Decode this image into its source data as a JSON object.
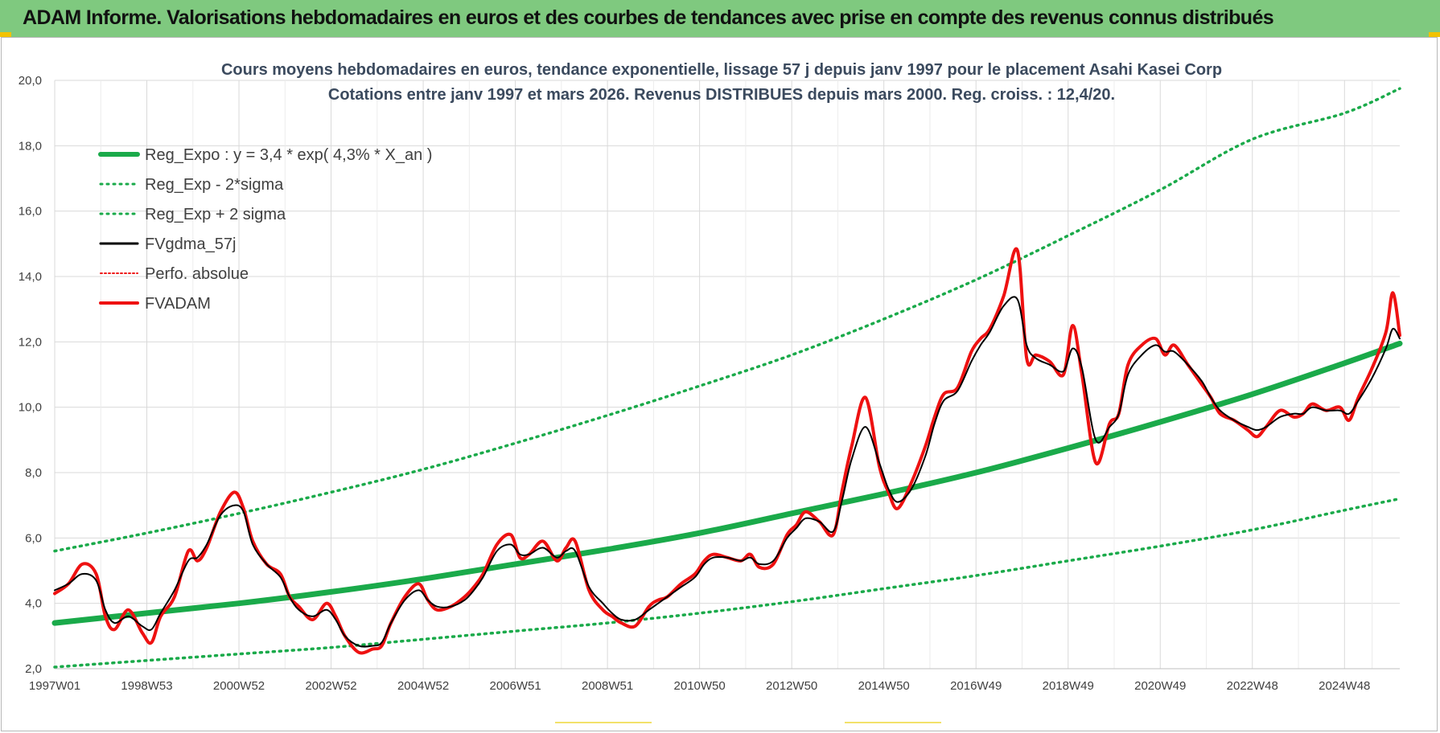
{
  "header": {
    "banner_title": "ADAM Informe. Valorisations hebdomadaires en euros et des courbes de tendances avec prise en compte des revenus connus distribués"
  },
  "colors": {
    "banner": "#7fc97f",
    "reg_expo": "#1aaa4a",
    "sigma": "#1aaa4a",
    "fvgdma": "#000000",
    "fvadam": "#ee1111",
    "perfo": "#ee1111",
    "grid": "#d9d9d9",
    "title_text": "#3b4a5e"
  },
  "chart_data": {
    "type": "line",
    "title": "Cours moyens hebdomadaires en euros, tendance exponentielle, lissage 57 j depuis janv 1997  pour le placement Asahi Kasei Corp",
    "subtitle": "Cotations entre janv 1997 et mars 2026. Revenus DISTRIBUES depuis mars 2000. Reg. croiss. : 12,4/20.",
    "xlabel": "",
    "ylabel": "",
    "x_range": [
      1997.0,
      2026.2
    ],
    "x_tick_values": [
      1997.0,
      1999.0,
      2001.0,
      2003.0,
      2005.0,
      2007.0,
      2009.0,
      2011.0,
      2013.0,
      2015.0,
      2017.0,
      2019.0,
      2021.0,
      2023.0,
      2025.0
    ],
    "x_tick_labels": [
      "1997W01",
      "1998W53",
      "2000W52",
      "2002W52",
      "2004W52",
      "2006W51",
      "2008W51",
      "2010W50",
      "2012W50",
      "2014W50",
      "2016W49",
      "2018W49",
      "2020W49",
      "2022W48",
      "2024W48"
    ],
    "ylim": [
      2.0,
      20.0
    ],
    "y_ticks": [
      2,
      4,
      6,
      8,
      10,
      12,
      14,
      16,
      18,
      20
    ],
    "y_tick_labels": [
      "2,0",
      "4,0",
      "6,0",
      "8,0",
      "10,0",
      "12,0",
      "14,0",
      "16,0",
      "18,0",
      "20,0"
    ],
    "grid": "both",
    "legend_position": "top-left",
    "legend": [
      {
        "key": "reg_expo",
        "label": "Reg_Expo : y = 3,4 * exp( 4,3% *  X_an )",
        "style": "solid-thick",
        "color": "#1aaa4a"
      },
      {
        "key": "reg_minus",
        "label": "Reg_Exp - 2*sigma",
        "style": "dotted",
        "color": "#1aaa4a"
      },
      {
        "key": "reg_plus",
        "label": "Reg_Exp + 2 sigma",
        "style": "dotted",
        "color": "#1aaa4a"
      },
      {
        "key": "fvgdma",
        "label": "FVgdma_57j",
        "style": "solid",
        "color": "#000000"
      },
      {
        "key": "perfo",
        "label": "Perfo. absolue",
        "style": "dotted-thin",
        "color": "#ee1111"
      },
      {
        "key": "fvadam",
        "label": "FVADAM",
        "style": "solid-thick",
        "color": "#ee1111"
      }
    ],
    "series": [
      {
        "key": "reg_expo",
        "x": [
          1997.0,
          1999.0,
          2001.0,
          2003.0,
          2005.0,
          2007.0,
          2009.0,
          2011.0,
          2013.0,
          2015.0,
          2017.0,
          2019.0,
          2021.0,
          2023.0,
          2025.0,
          2026.2
        ],
        "y": [
          3.4,
          3.7,
          4.0,
          4.35,
          4.75,
          5.2,
          5.65,
          6.15,
          6.75,
          7.35,
          8.0,
          8.75,
          9.55,
          10.4,
          11.35,
          11.95
        ]
      },
      {
        "key": "reg_minus",
        "x": [
          1997.0,
          1999.0,
          2001.0,
          2003.0,
          2005.0,
          2007.0,
          2009.0,
          2011.0,
          2013.0,
          2015.0,
          2017.0,
          2019.0,
          2021.0,
          2023.0,
          2025.0,
          2026.2
        ],
        "y": [
          2.05,
          2.25,
          2.45,
          2.65,
          2.9,
          3.15,
          3.4,
          3.7,
          4.05,
          4.45,
          4.85,
          5.3,
          5.75,
          6.25,
          6.85,
          7.2
        ]
      },
      {
        "key": "reg_plus",
        "x": [
          1997.0,
          1999.0,
          2001.0,
          2003.0,
          2005.0,
          2007.0,
          2009.0,
          2011.0,
          2013.0,
          2015.0,
          2017.0,
          2019.0,
          2021.0,
          2023.0,
          2025.0,
          2026.2
        ],
        "y": [
          5.6,
          6.15,
          6.75,
          7.4,
          8.1,
          8.9,
          9.75,
          10.65,
          11.6,
          12.7,
          13.9,
          15.25,
          16.65,
          18.2,
          19.0,
          19.75
        ]
      },
      {
        "key": "fvadam",
        "x": [
          1997.0,
          1997.3,
          1997.6,
          1997.9,
          1998.1,
          1998.3,
          1998.6,
          1998.9,
          1999.1,
          1999.3,
          1999.6,
          1999.9,
          2000.1,
          2000.3,
          2000.6,
          2000.9,
          2001.1,
          2001.3,
          2001.6,
          2001.9,
          2002.1,
          2002.3,
          2002.6,
          2002.9,
          2003.1,
          2003.3,
          2003.6,
          2003.9,
          2004.1,
          2004.3,
          2004.6,
          2004.9,
          2005.1,
          2005.3,
          2005.6,
          2005.9,
          2006.1,
          2006.3,
          2006.6,
          2006.9,
          2007.1,
          2007.3,
          2007.6,
          2007.9,
          2008.1,
          2008.3,
          2008.6,
          2008.9,
          2009.1,
          2009.3,
          2009.6,
          2009.9,
          2010.1,
          2010.3,
          2010.6,
          2010.9,
          2011.1,
          2011.3,
          2011.6,
          2011.9,
          2012.1,
          2012.3,
          2012.6,
          2012.9,
          2013.1,
          2013.3,
          2013.6,
          2013.9,
          2014.1,
          2014.3,
          2014.6,
          2014.9,
          2015.1,
          2015.3,
          2015.6,
          2015.9,
          2016.1,
          2016.3,
          2016.6,
          2016.9,
          2017.1,
          2017.3,
          2017.6,
          2017.9,
          2018.1,
          2018.3,
          2018.6,
          2018.9,
          2019.1,
          2019.3,
          2019.6,
          2019.9,
          2020.1,
          2020.3,
          2020.6,
          2020.9,
          2021.1,
          2021.3,
          2021.6,
          2021.9,
          2022.1,
          2022.3,
          2022.6,
          2022.9,
          2023.1,
          2023.3,
          2023.6,
          2023.9,
          2024.1,
          2024.3,
          2024.6,
          2024.9,
          2025.1,
          2025.3,
          2025.6,
          2025.9,
          2026.05,
          2026.2
        ],
        "y": [
          4.3,
          4.6,
          5.2,
          4.9,
          3.6,
          3.2,
          3.8,
          3.1,
          2.8,
          3.6,
          4.2,
          5.6,
          5.3,
          5.7,
          6.8,
          7.4,
          6.9,
          5.9,
          5.2,
          4.9,
          4.2,
          3.9,
          3.5,
          4.0,
          3.6,
          3.0,
          2.5,
          2.6,
          2.7,
          3.4,
          4.2,
          4.6,
          4.1,
          3.8,
          3.9,
          4.2,
          4.5,
          4.9,
          5.8,
          6.1,
          5.4,
          5.5,
          5.9,
          5.3,
          5.7,
          5.9,
          4.4,
          3.8,
          3.6,
          3.4,
          3.3,
          3.9,
          4.1,
          4.2,
          4.6,
          4.9,
          5.3,
          5.5,
          5.4,
          5.3,
          5.5,
          5.1,
          5.2,
          6.1,
          6.4,
          6.8,
          6.5,
          6.1,
          7.5,
          8.8,
          10.3,
          8.2,
          7.4,
          6.9,
          7.7,
          8.8,
          9.7,
          10.4,
          10.6,
          11.7,
          12.1,
          12.4,
          13.4,
          14.8,
          11.5,
          11.6,
          11.4,
          11.0,
          12.5,
          11.0,
          8.3,
          9.5,
          9.8,
          11.3,
          11.9,
          12.1,
          11.6,
          11.9,
          11.3,
          10.7,
          10.3,
          9.8,
          9.6,
          9.3,
          9.1,
          9.4,
          9.9,
          9.7,
          9.8,
          10.1,
          9.9,
          10.0,
          9.6,
          10.3,
          11.2,
          12.3,
          13.5,
          12.2
        ]
      },
      {
        "key": "fvgdma",
        "x": [
          1997.0,
          1997.3,
          1997.6,
          1997.9,
          1998.1,
          1998.3,
          1998.6,
          1998.9,
          1999.1,
          1999.3,
          1999.6,
          1999.9,
          2000.1,
          2000.3,
          2000.6,
          2000.9,
          2001.1,
          2001.3,
          2001.6,
          2001.9,
          2002.1,
          2002.3,
          2002.6,
          2002.9,
          2003.1,
          2003.3,
          2003.6,
          2003.9,
          2004.1,
          2004.3,
          2004.6,
          2004.9,
          2005.1,
          2005.3,
          2005.6,
          2005.9,
          2006.1,
          2006.3,
          2006.6,
          2006.9,
          2007.1,
          2007.3,
          2007.6,
          2007.9,
          2008.1,
          2008.3,
          2008.6,
          2008.9,
          2009.1,
          2009.3,
          2009.6,
          2009.9,
          2010.1,
          2010.3,
          2010.6,
          2010.9,
          2011.1,
          2011.3,
          2011.6,
          2011.9,
          2012.1,
          2012.3,
          2012.6,
          2012.9,
          2013.1,
          2013.3,
          2013.6,
          2013.9,
          2014.1,
          2014.3,
          2014.6,
          2014.9,
          2015.1,
          2015.3,
          2015.6,
          2015.9,
          2016.1,
          2016.3,
          2016.6,
          2016.9,
          2017.1,
          2017.3,
          2017.6,
          2017.9,
          2018.1,
          2018.3,
          2018.6,
          2018.9,
          2019.1,
          2019.3,
          2019.6,
          2019.9,
          2020.1,
          2020.3,
          2020.6,
          2020.9,
          2021.1,
          2021.3,
          2021.6,
          2021.9,
          2022.1,
          2022.3,
          2022.6,
          2022.9,
          2023.1,
          2023.3,
          2023.6,
          2023.9,
          2024.1,
          2024.3,
          2024.6,
          2024.9,
          2025.1,
          2025.3,
          2025.6,
          2025.9,
          2026.05,
          2026.2
        ],
        "y": [
          4.4,
          4.6,
          4.9,
          4.7,
          3.8,
          3.4,
          3.6,
          3.3,
          3.2,
          3.7,
          4.4,
          5.3,
          5.4,
          5.8,
          6.7,
          7.0,
          6.8,
          5.8,
          5.2,
          4.8,
          4.2,
          3.8,
          3.6,
          3.8,
          3.5,
          3.0,
          2.7,
          2.7,
          2.8,
          3.4,
          4.1,
          4.4,
          4.1,
          3.9,
          3.9,
          4.1,
          4.4,
          4.8,
          5.6,
          5.8,
          5.5,
          5.5,
          5.7,
          5.4,
          5.6,
          5.6,
          4.5,
          4.0,
          3.7,
          3.5,
          3.5,
          3.8,
          4.0,
          4.2,
          4.5,
          4.8,
          5.2,
          5.4,
          5.4,
          5.3,
          5.4,
          5.2,
          5.3,
          6.0,
          6.3,
          6.6,
          6.5,
          6.2,
          7.2,
          8.4,
          9.4,
          8.3,
          7.5,
          7.1,
          7.5,
          8.5,
          9.5,
          10.2,
          10.5,
          11.4,
          11.9,
          12.3,
          13.1,
          13.3,
          11.9,
          11.5,
          11.3,
          11.1,
          11.8,
          11.2,
          9.0,
          9.4,
          9.8,
          11.0,
          11.6,
          11.9,
          11.7,
          11.7,
          11.3,
          10.8,
          10.3,
          9.9,
          9.6,
          9.4,
          9.3,
          9.4,
          9.7,
          9.8,
          9.8,
          10.0,
          9.9,
          9.9,
          9.8,
          10.2,
          10.9,
          11.8,
          12.4,
          12.1
        ]
      }
    ]
  }
}
